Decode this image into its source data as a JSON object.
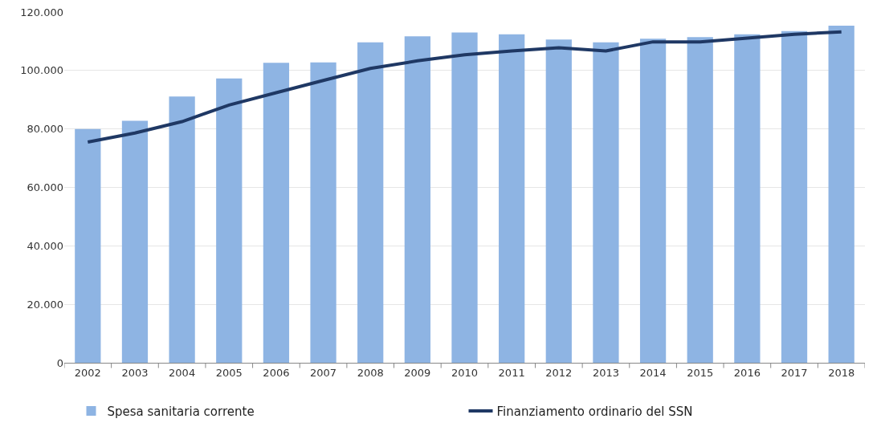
{
  "chart_data": {
    "type": "bar",
    "categories": [
      "2002",
      "2003",
      "2004",
      "2005",
      "2006",
      "2007",
      "2008",
      "2009",
      "2010",
      "2011",
      "2012",
      "2013",
      "2014",
      "2015",
      "2016",
      "2017",
      "2018"
    ],
    "series": [
      {
        "name": "Spesa sanitaria corrente",
        "color": "#8eb4e3",
        "values": [
          80000,
          82800,
          91100,
          97300,
          102600,
          102800,
          109600,
          111700,
          113000,
          112400,
          110600,
          109600,
          110900,
          111400,
          112400,
          113500,
          115300
        ]
      },
      {
        "name": "Finanziamento ordinario del SSN",
        "type": "line",
        "color": "#1f3864",
        "values": [
          75500,
          78600,
          82500,
          88200,
          92400,
          96600,
          100700,
          103300,
          105400,
          106700,
          107800,
          106700,
          109800,
          109800,
          111100,
          112400,
          113200
        ]
      }
    ],
    "ylim": [
      0,
      120000
    ],
    "yticks": [
      {
        "value": 0,
        "label": "0"
      },
      {
        "value": 20000,
        "label": "20.000"
      },
      {
        "value": 40000,
        "label": "40.000"
      },
      {
        "value": 60000,
        "label": "60.000"
      },
      {
        "value": 80000,
        "label": "80.000"
      },
      {
        "value": 100000,
        "label": "100.000"
      },
      {
        "value": 120000,
        "label": "120.000"
      }
    ],
    "grid": "y",
    "legend": "bottom",
    "marker": "none",
    "line_style": "solid"
  }
}
